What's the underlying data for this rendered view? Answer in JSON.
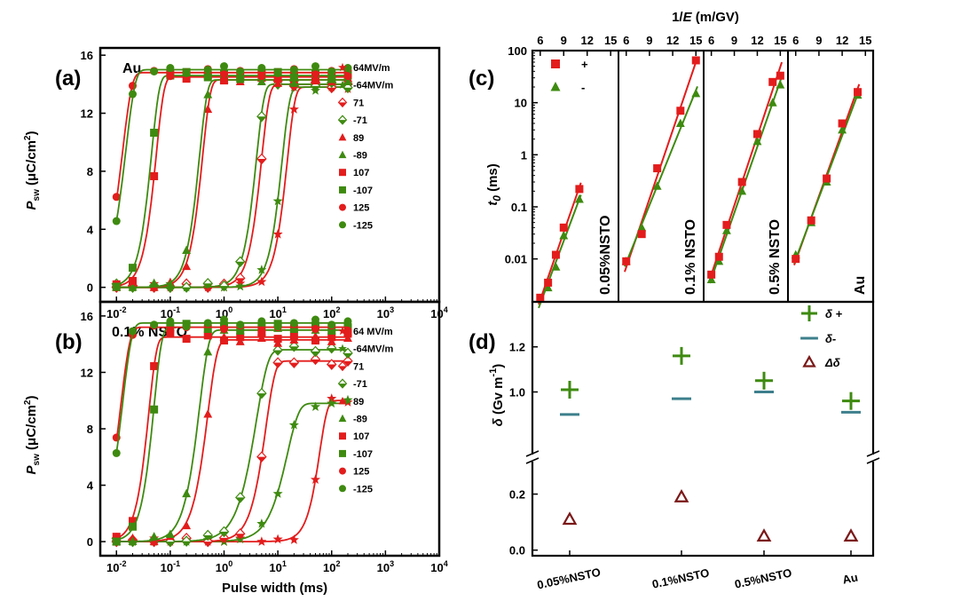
{
  "panel_labels": {
    "a": "(a)",
    "b": "(b)",
    "c": "(c)",
    "d": "(d)"
  },
  "colors": {
    "red": "#e31c1c",
    "green": "#3e8a10",
    "teal": "#3d7f8c",
    "maroon": "#7a1818"
  },
  "chart_data": [
    {
      "id": "a",
      "type": "scatter",
      "annotation": "Au",
      "xlabel": "Pulse width (ms)",
      "ylabel": "P_sw (μC/cm2)",
      "xscale": "log",
      "xlim": [
        0.005,
        10000
      ],
      "ylim": [
        -1,
        16.5
      ],
      "xticks": [
        0.01,
        0.1,
        1,
        10,
        100,
        1000,
        10000
      ],
      "xticklabels": [
        "10-2",
        "10-1",
        "100",
        "101",
        "102",
        "103",
        "104"
      ],
      "yticks": [
        0,
        4,
        8,
        12,
        16
      ],
      "x": [
        0.01,
        0.02,
        0.05,
        0.1,
        0.2,
        0.5,
        1,
        2,
        5,
        10,
        20,
        50,
        100,
        200
      ],
      "legend": [
        "64MV/m",
        "-64MV/m",
        "71",
        "-71",
        "89",
        "-89",
        "107",
        "-107",
        "125",
        "-125"
      ],
      "series": [
        {
          "name": "64MV/m",
          "marker": "star",
          "color": "red",
          "t0": 15,
          "sat": 13.8,
          "n": 3
        },
        {
          "name": "-64MV/m",
          "marker": "star",
          "color": "green",
          "t0": 12,
          "sat": 13.8,
          "n": 3
        },
        {
          "name": "71",
          "marker": "diamond-half",
          "color": "red",
          "t0": 5,
          "sat": 14.0,
          "n": 3
        },
        {
          "name": "-71",
          "marker": "diamond-half",
          "color": "green",
          "t0": 4,
          "sat": 14.0,
          "n": 3
        },
        {
          "name": "89",
          "marker": "triangle",
          "color": "red",
          "t0": 0.4,
          "sat": 14.3,
          "n": 3
        },
        {
          "name": "-89",
          "marker": "triangle",
          "color": "green",
          "t0": 0.35,
          "sat": 14.3,
          "n": 3
        },
        {
          "name": "107",
          "marker": "square",
          "color": "red",
          "t0": 0.055,
          "sat": 14.5,
          "n": 3
        },
        {
          "name": "-107",
          "marker": "square",
          "color": "green",
          "t0": 0.045,
          "sat": 14.6,
          "n": 3
        },
        {
          "name": "125",
          "marker": "circle",
          "color": "red",
          "t0": 0.013,
          "sat": 14.8,
          "n": 2.5
        },
        {
          "name": "-125",
          "marker": "circle",
          "color": "green",
          "t0": 0.015,
          "sat": 15.0,
          "n": 2.5
        }
      ]
    },
    {
      "id": "b",
      "type": "scatter",
      "annotation": "0.1% NSTO",
      "xlabel": "Pulse width (ms)",
      "ylabel": "P_sw (μC/cm2)",
      "xscale": "log",
      "xlim": [
        0.005,
        10000
      ],
      "ylim": [
        -1,
        17
      ],
      "xticks": [
        0.01,
        0.1,
        1,
        10,
        100,
        1000,
        10000
      ],
      "xticklabels": [
        "10-2",
        "10-1",
        "100",
        "101",
        "102",
        "103",
        "104"
      ],
      "yticks": [
        0,
        4,
        8,
        12,
        16
      ],
      "x": [
        0.01,
        0.02,
        0.05,
        0.1,
        0.2,
        0.5,
        1,
        2,
        5,
        10,
        20,
        50,
        100,
        200
      ],
      "legend": [
        "64 MV/m",
        "-64MV/m",
        "71",
        "-71",
        "89",
        "-89",
        "107",
        "-107",
        "125",
        "-125"
      ],
      "series": [
        {
          "name": "64 MV/m",
          "marker": "star",
          "color": "red",
          "t0": 60,
          "sat": 10.0,
          "n": 3
        },
        {
          "name": "-64MV/m",
          "marker": "star",
          "color": "green",
          "t0": 15,
          "sat": 9.8,
          "n": 2
        },
        {
          "name": "71",
          "marker": "diamond-half",
          "color": "red",
          "t0": 6,
          "sat": 12.8,
          "n": 2.5
        },
        {
          "name": "-71",
          "marker": "diamond-half",
          "color": "green",
          "t0": 4,
          "sat": 13.6,
          "n": 2
        },
        {
          "name": "89",
          "marker": "triangle",
          "color": "red",
          "t0": 0.5,
          "sat": 14.3,
          "n": 2.5
        },
        {
          "name": "-89",
          "marker": "triangle",
          "color": "green",
          "t0": 0.35,
          "sat": 15.0,
          "n": 2.5
        },
        {
          "name": "107",
          "marker": "square",
          "color": "red",
          "t0": 0.04,
          "sat": 14.5,
          "n": 3
        },
        {
          "name": "-107",
          "marker": "square",
          "color": "green",
          "t0": 0.05,
          "sat": 15.2,
          "n": 3
        },
        {
          "name": "125",
          "marker": "circle",
          "color": "red",
          "t0": 0.012,
          "sat": 15.2,
          "n": 2.5
        },
        {
          "name": "-125",
          "marker": "circle",
          "color": "green",
          "t0": 0.013,
          "sat": 15.5,
          "n": 2.5
        }
      ]
    },
    {
      "id": "c",
      "type": "scatter",
      "xlabel": "1/E (m/GV)",
      "ylabel": "t0 (ms)",
      "yscale": "log",
      "ylim": [
        0.0015,
        100
      ],
      "yticks": [
        0.01,
        0.1,
        1,
        10,
        100
      ],
      "yticklabels": [
        "0.01",
        "0.1",
        "1",
        "10",
        "100"
      ],
      "xlim": [
        5,
        16
      ],
      "xticks": [
        6,
        9,
        12,
        15
      ],
      "legend": [
        "+",
        "-"
      ],
      "subpanels": [
        {
          "label": "0.05%NSTO",
          "plus": [
            [
              6,
              0.0018
            ],
            [
              7,
              0.0035
            ],
            [
              8,
              0.012
            ],
            [
              9,
              0.04
            ],
            [
              11,
              0.22
            ]
          ],
          "minus": [
            [
              6,
              0.0017
            ],
            [
              7,
              0.0028
            ],
            [
              8,
              0.007
            ],
            [
              9,
              0.028
            ],
            [
              11,
              0.14
            ]
          ]
        },
        {
          "label": "0.1% NSTO",
          "plus": [
            [
              6,
              0.009
            ],
            [
              8,
              0.03
            ],
            [
              10,
              0.55
            ],
            [
              13,
              7
            ],
            [
              15,
              65
            ]
          ],
          "minus": [
            [
              6,
              0.009
            ],
            [
              8,
              0.04
            ],
            [
              10,
              0.25
            ],
            [
              13,
              4
            ],
            [
              15,
              15
            ]
          ]
        },
        {
          "label": "0.5% NSTO",
          "plus": [
            [
              6,
              0.005
            ],
            [
              7,
              0.011
            ],
            [
              8,
              0.045
            ],
            [
              10,
              0.3
            ],
            [
              12,
              2.5
            ],
            [
              14,
              25
            ],
            [
              15,
              33
            ]
          ],
          "minus": [
            [
              6,
              0.004
            ],
            [
              7,
              0.009
            ],
            [
              8,
              0.035
            ],
            [
              10,
              0.2
            ],
            [
              12,
              1.8
            ],
            [
              14,
              10
            ],
            [
              15,
              22
            ]
          ]
        },
        {
          "label": "Au",
          "plus": [
            [
              6,
              0.01
            ],
            [
              8,
              0.055
            ],
            [
              10,
              0.35
            ],
            [
              12,
              4
            ],
            [
              14,
              16
            ]
          ],
          "minus": [
            [
              6,
              0.012
            ],
            [
              8,
              0.05
            ],
            [
              10,
              0.3
            ],
            [
              12,
              3
            ],
            [
              14,
              14
            ]
          ]
        }
      ]
    },
    {
      "id": "d",
      "type": "scatter",
      "ylabel": "δ (Gv m-1)",
      "categories": [
        "0.05%NSTO",
        "0.1%NSTO",
        "0.5%NSTO",
        "Au"
      ],
      "yticks_upper": [
        1.0,
        1.2
      ],
      "yticks_lower": [
        0.0,
        0.2
      ],
      "ylim_upper": [
        0.75,
        1.38
      ],
      "ylim_lower": [
        -0.02,
        0.3
      ],
      "axis_break": true,
      "legend": [
        "δ +",
        "δ-",
        "Δδ"
      ],
      "series": [
        {
          "name": "δ +",
          "marker": "plus",
          "color": "green",
          "values": [
            1.01,
            1.16,
            1.05,
            0.96
          ]
        },
        {
          "name": "δ-",
          "marker": "dash",
          "color": "teal",
          "values": [
            0.9,
            0.97,
            1.0,
            0.91
          ]
        },
        {
          "name": "Δδ",
          "marker": "triangle-open",
          "color": "maroon",
          "values": [
            0.11,
            0.19,
            0.05,
            0.05
          ]
        }
      ]
    }
  ]
}
